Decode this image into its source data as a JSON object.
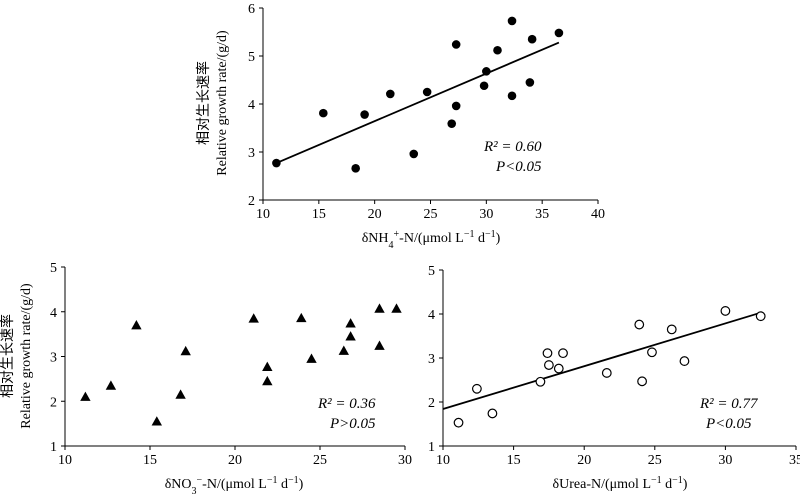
{
  "chart_data": [
    {
      "type": "scatter",
      "panel": "NH4",
      "marker": "filled-circle",
      "xlabel": "δNH4+-N/(μmol L−1 d−1)",
      "xlabel_parts": {
        "pre": "δNH",
        "sub": "4",
        "sup": "+",
        "post": "-N/(μmol L",
        "sup2": "−1",
        "mid": " d",
        "sup3": "−1",
        "end": ")"
      },
      "ylabel_cn": "相对生长速率",
      "ylabel_en": "Relative growth rate/(g/d)",
      "xlim": [
        10,
        40
      ],
      "ylim": [
        2,
        6
      ],
      "xticks": [
        10,
        15,
        20,
        25,
        30,
        35,
        40
      ],
      "yticks": [
        2,
        3,
        4,
        5,
        6
      ],
      "x": [
        11.2,
        15.4,
        18.3,
        19.1,
        21.4,
        23.5,
        24.7,
        26.9,
        27.3,
        27.3,
        29.8,
        30.0,
        31.0,
        32.3,
        32.3,
        33.9,
        34.1,
        36.5
      ],
      "y": [
        2.77,
        3.81,
        2.66,
        3.78,
        4.21,
        2.96,
        4.25,
        3.59,
        3.96,
        5.24,
        4.38,
        4.68,
        5.12,
        5.73,
        4.17,
        4.45,
        5.35,
        5.48
      ],
      "fit": {
        "x": [
          11.2,
          36.5
        ],
        "y": [
          2.77,
          5.28
        ]
      },
      "annotation": {
        "r2": "R² = 0.60",
        "p": "P<0.05"
      }
    },
    {
      "type": "scatter",
      "panel": "NO3",
      "marker": "filled-triangle",
      "xlabel": "δNO3−-N/(μmol L−1 d−1)",
      "xlabel_parts": {
        "pre": "δNO",
        "sub": "3",
        "sup": "−",
        "post": "-N/(μmol L",
        "sup2": "−1",
        "mid": " d",
        "sup3": "−1",
        "end": ")"
      },
      "ylabel_cn": "相对生长速率",
      "ylabel_en": "Relative growth rate/(g/d)",
      "xlim": [
        10,
        30
      ],
      "ylim": [
        1,
        5
      ],
      "xticks": [
        10,
        15,
        20,
        25,
        30
      ],
      "yticks": [
        1,
        2,
        3,
        4,
        5
      ],
      "x": [
        11.2,
        12.7,
        14.2,
        15.4,
        16.8,
        17.1,
        21.1,
        21.9,
        21.9,
        23.9,
        24.5,
        26.4,
        26.8,
        26.8,
        28.5,
        28.5,
        29.5
      ],
      "y": [
        2.1,
        2.35,
        3.7,
        1.55,
        2.15,
        3.12,
        3.85,
        2.77,
        2.45,
        3.86,
        2.95,
        3.13,
        3.45,
        3.74,
        3.24,
        4.07,
        4.07
      ],
      "annotation": {
        "r2": "R² = 0.36",
        "p": "P>0.05"
      }
    },
    {
      "type": "scatter",
      "panel": "Urea",
      "marker": "open-circle",
      "xlabel": "δUrea-N/(μmol L−1 d−1)",
      "xlabel_parts": {
        "pre": "δUrea-N/(μmol L",
        "sup2": "−1",
        "mid": " d",
        "sup3": "−1",
        "end": ")"
      },
      "xlim": [
        10,
        35
      ],
      "ylim": [
        1,
        5
      ],
      "xticks": [
        10,
        15,
        20,
        25,
        30,
        35
      ],
      "yticks": [
        1,
        2,
        3,
        4,
        5
      ],
      "x": [
        11.1,
        12.4,
        13.5,
        16.9,
        17.4,
        17.5,
        18.2,
        18.5,
        21.6,
        23.9,
        24.1,
        24.8,
        26.2,
        27.1,
        30.0,
        32.5
      ],
      "y": [
        1.53,
        2.3,
        1.74,
        2.46,
        3.11,
        2.84,
        2.76,
        3.11,
        2.66,
        3.76,
        2.47,
        3.13,
        3.65,
        2.93,
        4.07,
        3.95
      ],
      "fit": {
        "x": [
          10,
          32.5
        ],
        "y": [
          1.84,
          4.03
        ]
      },
      "annotation": {
        "r2": "R² = 0.77",
        "p": "P<0.05"
      }
    }
  ]
}
